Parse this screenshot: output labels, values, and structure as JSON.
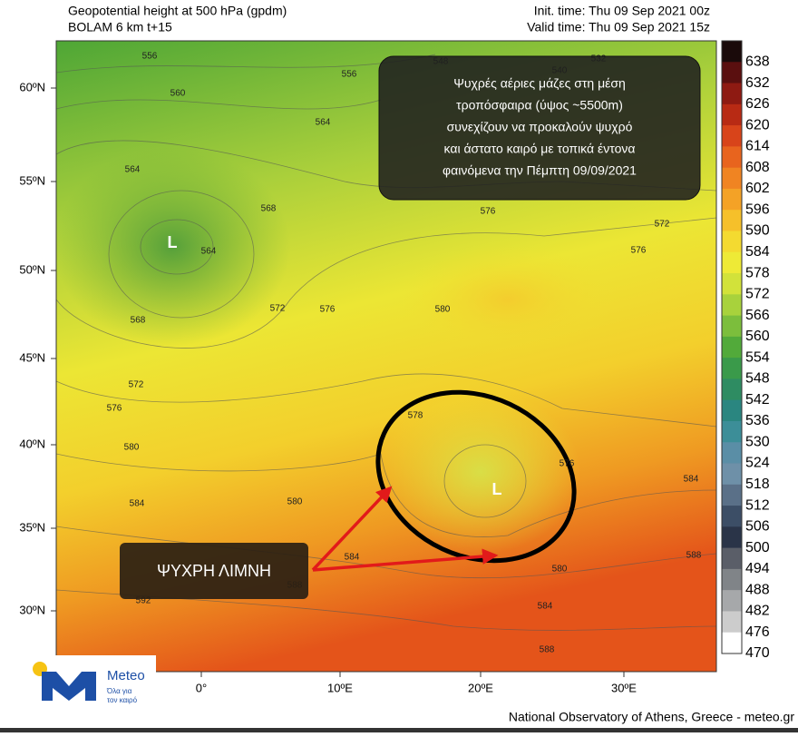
{
  "header": {
    "title": "Geopotential height at 500 hPa (gpdm)",
    "subtitle": "BOLAM 6 km t+15",
    "init_time": "Init. time: Thu 09 Sep 2021 00z",
    "valid_time": "Valid time: Thu 09 Sep 2021 15z"
  },
  "map": {
    "lat_labels": [
      "60ºN",
      "55ºN",
      "50ºN",
      "45ºN",
      "40ºN",
      "35ºN",
      "30ºN"
    ],
    "lon_labels": [
      "0°",
      "10ºE",
      "20ºE",
      "30ºE"
    ],
    "contour_labels": [
      "556",
      "556",
      "548",
      "540",
      "532",
      "560",
      "564",
      "564",
      "568",
      "564",
      "568",
      "572",
      "576",
      "576",
      "572",
      "576",
      "580",
      "572",
      "576",
      "580",
      "578",
      "584",
      "580",
      "584",
      "588",
      "580",
      "584",
      "588",
      "584",
      "588",
      "592",
      "576"
    ],
    "lows": [
      "L",
      "L"
    ]
  },
  "colorbar": {
    "ticks": [
      638,
      632,
      626,
      620,
      614,
      608,
      602,
      596,
      590,
      584,
      578,
      572,
      566,
      560,
      554,
      548,
      542,
      536,
      530,
      524,
      518,
      512,
      506,
      500,
      494,
      488,
      482,
      476,
      470
    ]
  },
  "annotation": {
    "lines": [
      "Ψυχρές αέριες μάζες στη μέση",
      "τροπόσφαιρα  (ύψος ~5500m)",
      "συνεχίζουν να προκαλούν ψυχρό",
      "και άστατο καιρό με τοπικά έντονα",
      "φαινόμενα την Πέμπτη 09/09/2021"
    ]
  },
  "callout": "ΨΥΧΡΗ ΛΙΜΝΗ",
  "logo": {
    "name": "Meteo",
    "tagline": [
      "Όλα για",
      "τον καιρό"
    ]
  },
  "footer": "National Observatory of Athens, Greece - meteo.gr"
}
